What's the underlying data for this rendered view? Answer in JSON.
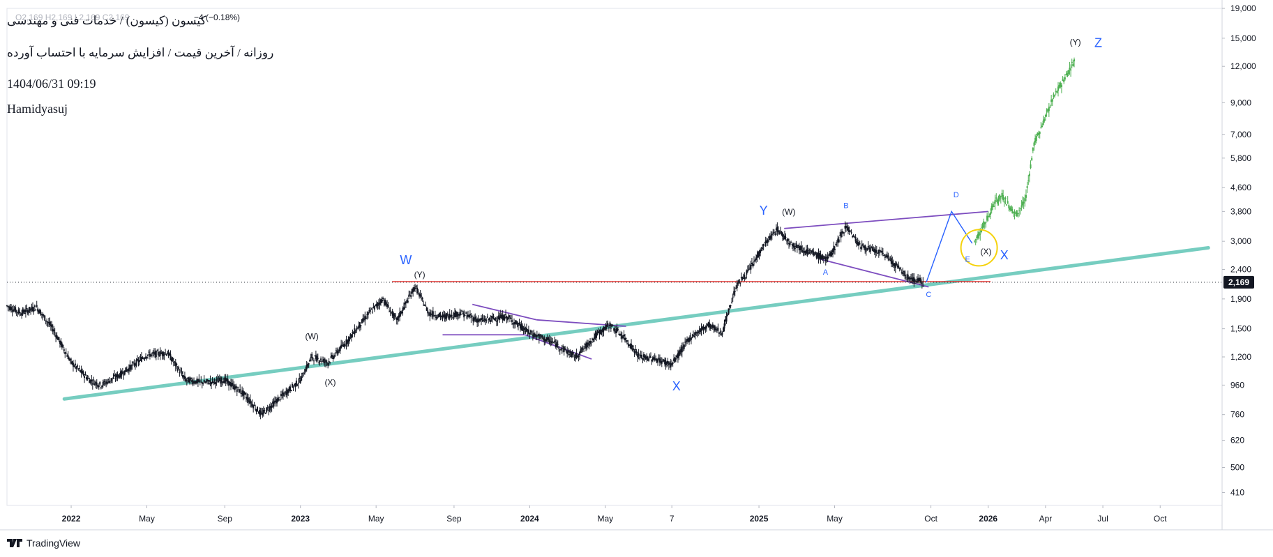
{
  "header": {
    "ohlc": "O2,169  H2,169  L2,169  C2,169",
    "change": "−4 (−0.18%)",
    "title": "کیسون (کیسون) / خدمات فنی و مهندسی",
    "subtitle": "روزانه / آخرین قیمت / افزایش سرمایه با احتساب آورده",
    "datetime": "1404/06/31 09:19",
    "author": "Hamidyasuj"
  },
  "footer": {
    "brand": "TradingView"
  },
  "colors": {
    "candle": "#131722",
    "projection": "#4caf50",
    "trendline": "#76cdc0",
    "support": "#e53935",
    "pattern": "#7d4dbf",
    "wave_blue": "#2962ff",
    "highlight": "#f5d20a",
    "price_label_bg": "#131722"
  },
  "chart_data": {
    "type": "candlestick",
    "y_scale": "log",
    "ylim": [
      370,
      19000
    ],
    "y_ticks": [
      410,
      500,
      620,
      760,
      960,
      1200,
      1500,
      1900,
      2400,
      3000,
      3800,
      4600,
      5800,
      7000,
      9000,
      12000,
      15000,
      19000
    ],
    "x_ticks": [
      {
        "label": "2022",
        "bold": true,
        "t": 2022.0
      },
      {
        "label": "May",
        "bold": false,
        "t": 2022.33
      },
      {
        "label": "Sep",
        "bold": false,
        "t": 2022.67
      },
      {
        "label": "2023",
        "bold": true,
        "t": 2023.0
      },
      {
        "label": "May",
        "bold": false,
        "t": 2023.33
      },
      {
        "label": "Sep",
        "bold": false,
        "t": 2023.67
      },
      {
        "label": "2024",
        "bold": true,
        "t": 2024.0
      },
      {
        "label": "May",
        "bold": false,
        "t": 2024.33
      },
      {
        "label": "7",
        "bold": false,
        "t": 2024.62
      },
      {
        "label": "2025",
        "bold": true,
        "t": 2025.0
      },
      {
        "label": "May",
        "bold": false,
        "t": 2025.33
      },
      {
        "label": "Oct",
        "bold": false,
        "t": 2025.75
      },
      {
        "label": "2026",
        "bold": true,
        "t": 2026.0
      },
      {
        "label": "Apr",
        "bold": false,
        "t": 2026.25
      },
      {
        "label": "Jul",
        "bold": false,
        "t": 2026.5
      },
      {
        "label": "Oct",
        "bold": false,
        "t": 2026.75
      }
    ],
    "xlim": [
      2021.72,
      2027.02
    ],
    "last_price": 2169,
    "last_price_label": "2,169",
    "price_path": [
      [
        2021.72,
        1800
      ],
      [
        2021.78,
        1700
      ],
      [
        2021.85,
        1780
      ],
      [
        2021.92,
        1500
      ],
      [
        2022.0,
        1150
      ],
      [
        2022.08,
        1000
      ],
      [
        2022.13,
        960
      ],
      [
        2022.22,
        1050
      ],
      [
        2022.33,
        1220
      ],
      [
        2022.42,
        1240
      ],
      [
        2022.5,
        1000
      ],
      [
        2022.58,
        980
      ],
      [
        2022.67,
        1000
      ],
      [
        2022.75,
        900
      ],
      [
        2022.83,
        760
      ],
      [
        2022.92,
        880
      ],
      [
        2023.0,
        1000
      ],
      [
        2023.05,
        1200
      ],
      [
        2023.12,
        1150
      ],
      [
        2023.2,
        1350
      ],
      [
        2023.3,
        1700
      ],
      [
        2023.36,
        1900
      ],
      [
        2023.42,
        1600
      ],
      [
        2023.5,
        2100
      ],
      [
        2023.56,
        1700
      ],
      [
        2023.62,
        1650
      ],
      [
        2023.7,
        1700
      ],
      [
        2023.78,
        1600
      ],
      [
        2023.9,
        1650
      ],
      [
        2024.0,
        1450
      ],
      [
        2024.1,
        1350
      ],
      [
        2024.2,
        1200
      ],
      [
        2024.3,
        1450
      ],
      [
        2024.35,
        1550
      ],
      [
        2024.42,
        1380
      ],
      [
        2024.48,
        1200
      ],
      [
        2024.55,
        1180
      ],
      [
        2024.62,
        1130
      ],
      [
        2024.7,
        1400
      ],
      [
        2024.78,
        1550
      ],
      [
        2024.84,
        1450
      ],
      [
        2024.9,
        2100
      ],
      [
        2024.96,
        2400
      ],
      [
        2025.02,
        2900
      ],
      [
        2025.08,
        3300
      ],
      [
        2025.14,
        2950
      ],
      [
        2025.22,
        2750
      ],
      [
        2025.3,
        2600
      ],
      [
        2025.34,
        2950
      ],
      [
        2025.38,
        3400
      ],
      [
        2025.44,
        2900
      ],
      [
        2025.55,
        2700
      ],
      [
        2025.65,
        2250
      ],
      [
        2025.72,
        2169
      ]
    ],
    "projection_path": [
      [
        2025.94,
        3000
      ],
      [
        2025.97,
        3300
      ],
      [
        2026.0,
        3650
      ],
      [
        2026.03,
        4100
      ],
      [
        2026.06,
        4300
      ],
      [
        2026.09,
        4000
      ],
      [
        2026.12,
        3700
      ],
      [
        2026.16,
        4100
      ],
      [
        2026.2,
        6500
      ],
      [
        2026.24,
        7700
      ],
      [
        2026.28,
        9200
      ],
      [
        2026.33,
        10800
      ],
      [
        2026.38,
        12800
      ]
    ],
    "trendline": {
      "from": [
        2021.97,
        860
      ],
      "to": [
        2026.96,
        2850
      ]
    },
    "support_line": {
      "from": [
        2023.4,
        2180
      ],
      "to": [
        2026.01,
        2180
      ],
      "price": 2180
    },
    "patterns": [
      {
        "from": [
          2023.75,
          1820
        ],
        "to": [
          2024.03,
          1610
        ]
      },
      {
        "from": [
          2024.03,
          1610
        ],
        "to": [
          2024.42,
          1530
        ]
      },
      {
        "from": [
          2023.62,
          1430
        ],
        "to": [
          2023.98,
          1430
        ]
      },
      {
        "from": [
          2023.98,
          1430
        ],
        "to": [
          2024.27,
          1180
        ]
      },
      {
        "from": [
          2025.11,
          3320
        ],
        "to": [
          2026.0,
          3800
        ]
      },
      {
        "from": [
          2025.27,
          2600
        ],
        "to": [
          2025.74,
          2090
        ]
      }
    ],
    "triangle_path": [
      [
        2025.73,
        2169
      ],
      [
        2025.84,
        3800
      ],
      [
        2025.93,
        2950
      ]
    ],
    "annotations": [
      {
        "text": "W",
        "t": 2023.46,
        "price": 2500,
        "style": "wave",
        "size": 18
      },
      {
        "text": "(Y)",
        "t": 2023.52,
        "price": 2250,
        "style": "small",
        "size": 12
      },
      {
        "text": "(W)",
        "t": 2023.05,
        "price": 1380,
        "style": "small",
        "size": 12
      },
      {
        "text": "(X)",
        "t": 2023.13,
        "price": 960,
        "style": "small",
        "size": 12
      },
      {
        "text": "X",
        "t": 2024.64,
        "price": 920,
        "style": "wave",
        "size": 18
      },
      {
        "text": "Y",
        "t": 2025.02,
        "price": 3700,
        "style": "wave",
        "size": 18
      },
      {
        "text": "(W)",
        "t": 2025.13,
        "price": 3700,
        "style": "small",
        "size": 12
      },
      {
        "text": "B",
        "t": 2025.38,
        "price": 3900,
        "style": "letter",
        "size": 11
      },
      {
        "text": "A",
        "t": 2025.29,
        "price": 2300,
        "style": "letter",
        "size": 11
      },
      {
        "text": "C",
        "t": 2025.74,
        "price": 1930,
        "style": "letter",
        "size": 11
      },
      {
        "text": "D",
        "t": 2025.86,
        "price": 4250,
        "style": "letter",
        "size": 11
      },
      {
        "text": "E",
        "t": 2025.91,
        "price": 2550,
        "style": "letter",
        "size": 11
      },
      {
        "text": "(X)",
        "t": 2025.99,
        "price": 2700,
        "style": "small",
        "size": 12
      },
      {
        "text": "X",
        "t": 2026.07,
        "price": 2600,
        "style": "wave",
        "size": 18
      },
      {
        "text": "(Y)",
        "t": 2026.38,
        "price": 14200,
        "style": "small",
        "size": 12
      },
      {
        "text": "Z",
        "t": 2026.48,
        "price": 14000,
        "style": "wave",
        "size": 18
      }
    ],
    "highlight_circle": {
      "t": 2025.96,
      "price": 2850
    }
  }
}
